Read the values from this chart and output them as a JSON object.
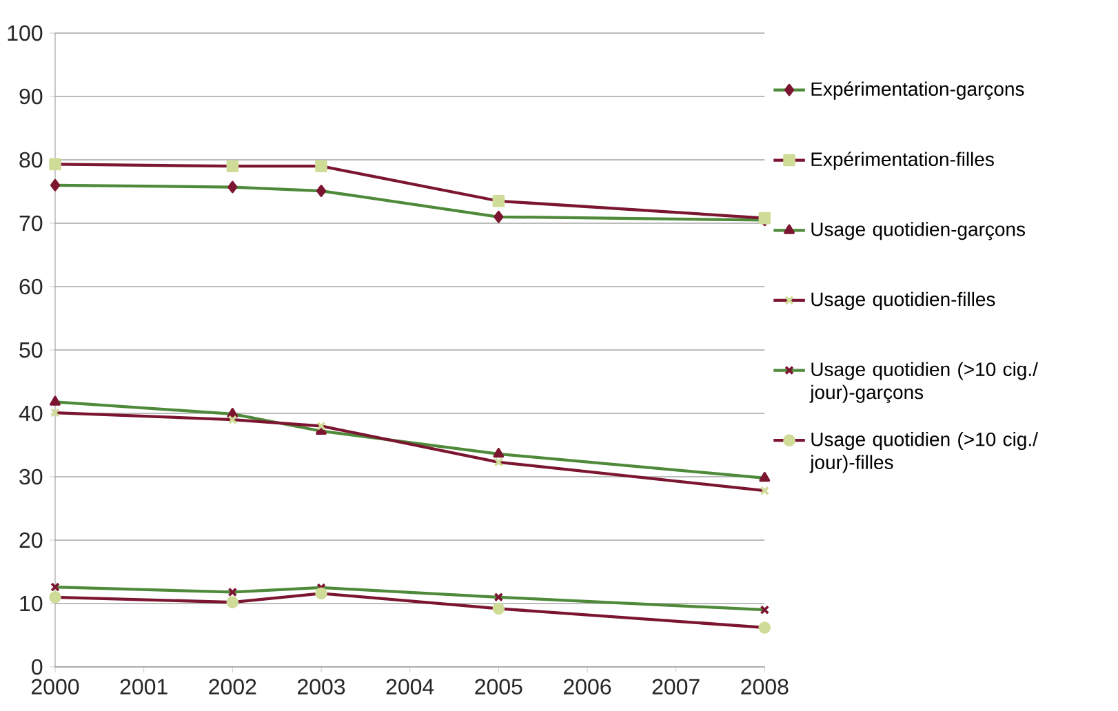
{
  "chart_data": {
    "type": "line",
    "x": [
      2000,
      2002,
      2003,
      2005,
      2008
    ],
    "xlim": [
      2000,
      2008
    ],
    "xticks": [
      2000,
      2001,
      2002,
      2003,
      2004,
      2005,
      2006,
      2007,
      2008
    ],
    "ylim": [
      0,
      100
    ],
    "yticks": [
      0,
      10,
      20,
      30,
      40,
      50,
      60,
      70,
      80,
      90,
      100
    ],
    "grid": "y",
    "legend": "right",
    "series": [
      {
        "name": "Expérimentation-garçons",
        "color": "#4e8a3a",
        "marker": "diamond",
        "colors": [
          "#7b1530",
          "#7b1530",
          "#7b1530",
          "#7b1530",
          "#7b1530"
        ],
        "values": [
          76,
          75.7,
          75.1,
          71,
          70.5
        ]
      },
      {
        "name": "Expérimentation-filles",
        "color": "#7b1530",
        "marker": "square",
        "colors": [
          "#cfdc98",
          "#cfdc98",
          "#cfdc98",
          "#cfdc98",
          "#cfdc98"
        ],
        "values": [
          79.3,
          79,
          79,
          73.5,
          70.8
        ]
      },
      {
        "name": "Usage quotidien-garçons",
        "color": "#4e8a3a",
        "marker": "triangle",
        "colors": [
          "#7b1530",
          "#7b1530",
          "#7b1530",
          "#7b1530",
          "#7b1530"
        ],
        "values": [
          41.8,
          39.9,
          37.2,
          33.6,
          29.8
        ]
      },
      {
        "name": "Usage quotidien-filles",
        "color": "#7b1530",
        "marker": "cross",
        "colors": [
          "#cfdc98",
          "#cfdc98",
          "#cfdc98",
          "#cfdc98",
          "#cfdc98"
        ],
        "values": [
          40.1,
          39,
          38,
          32.3,
          27.8
        ]
      },
      {
        "name": "Usage quotidien (>10 cig./ jour)-garçons",
        "color": "#4e8a3a",
        "marker": "cross",
        "colors": [
          "#7b1530",
          "#7b1530",
          "#7b1530",
          "#7b1530",
          "#7b1530"
        ],
        "values": [
          12.6,
          11.8,
          12.5,
          11,
          9
        ]
      },
      {
        "name": "Usage quotidien (>10 cig./ jour)-filles",
        "color": "#7b1530",
        "marker": "circle",
        "colors": [
          "#cfdc98",
          "#cfdc98",
          "#cfdc98",
          "#cfdc98",
          "#cfdc98"
        ],
        "values": [
          11,
          10.2,
          11.6,
          9.2,
          6.2
        ]
      }
    ]
  }
}
